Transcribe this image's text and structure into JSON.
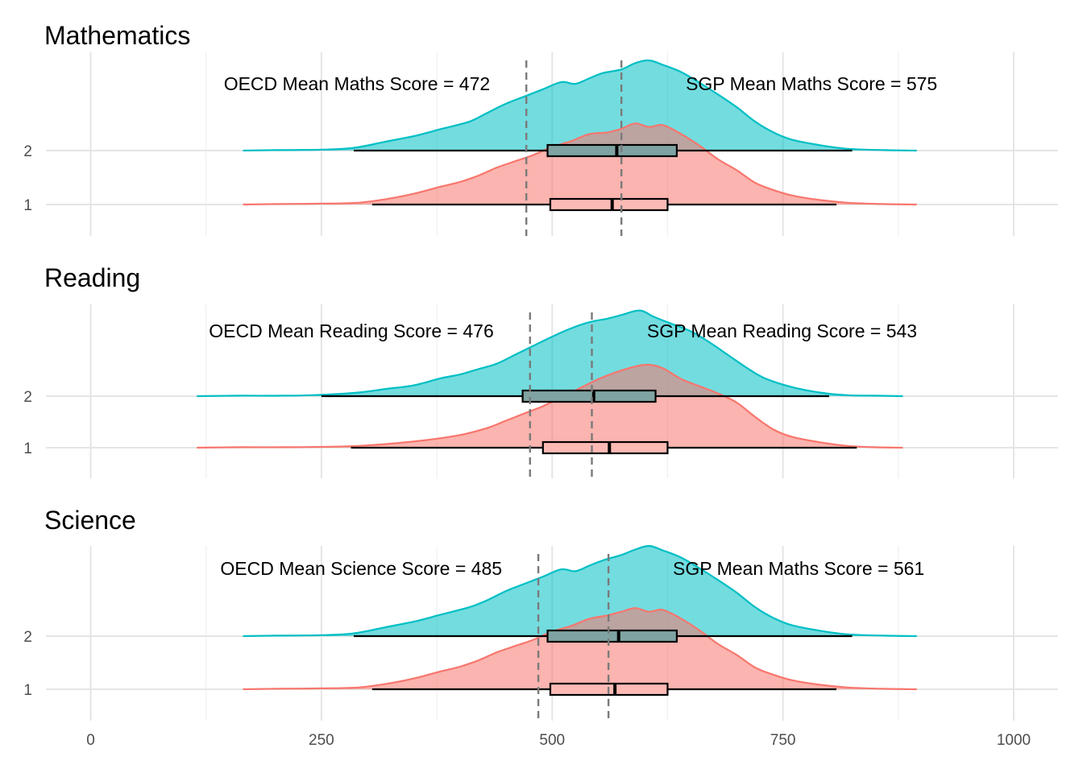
{
  "chart_data": {
    "type": "area",
    "subtype": "raincloud/ridgeline density with boxplots, faceted",
    "x_axis": {
      "ticks": [
        0,
        250,
        500,
        750,
        1000
      ],
      "labels": [
        "0",
        "250",
        "500",
        "750",
        "1000"
      ],
      "xlim": [
        -40,
        1050
      ]
    },
    "y_categories": [
      "2",
      "1"
    ],
    "colors": {
      "group_1": "#F8766D",
      "group_2": "#00BFC4",
      "box_fill_1": "#FDBAB5",
      "box_fill_2": "#7FA3A2",
      "mean_line": "#7a7a7a"
    },
    "facets": [
      {
        "title": "Mathematics",
        "oecd_mean": 472,
        "sgp_mean": 575,
        "oecd_label": "OECD Mean Maths Score = 472",
        "sgp_label": "SGP Mean Maths Score = 575",
        "series": [
          {
            "group": "2",
            "range": [
              165,
              895
            ],
            "whisker": [
              285,
              825
            ],
            "box": [
              495,
              570,
              635
            ],
            "density": [
              [
                165,
                0
              ],
              [
                200,
                0.005
              ],
              [
                250,
                0.01
              ],
              [
                285,
                0.03
              ],
              [
                320,
                0.1
              ],
              [
                350,
                0.16
              ],
              [
                380,
                0.24
              ],
              [
                410,
                0.32
              ],
              [
                430,
                0.42
              ],
              [
                450,
                0.52
              ],
              [
                470,
                0.6
              ],
              [
                490,
                0.68
              ],
              [
                510,
                0.76
              ],
              [
                525,
                0.74
              ],
              [
                540,
                0.8
              ],
              [
                555,
                0.86
              ],
              [
                575,
                0.9
              ],
              [
                590,
                0.97
              ],
              [
                605,
                1.0
              ],
              [
                620,
                0.95
              ],
              [
                640,
                0.87
              ],
              [
                660,
                0.75
              ],
              [
                680,
                0.62
              ],
              [
                700,
                0.48
              ],
              [
                720,
                0.32
              ],
              [
                740,
                0.2
              ],
              [
                760,
                0.12
              ],
              [
                790,
                0.06
              ],
              [
                820,
                0.02
              ],
              [
                860,
                0.005
              ],
              [
                895,
                0
              ]
            ]
          },
          {
            "group": "1",
            "range": [
              165,
              895
            ],
            "whisker": [
              305,
              808
            ],
            "box": [
              498,
              565,
              625
            ],
            "density": [
              [
                165,
                0
              ],
              [
                200,
                0.005
              ],
              [
                250,
                0.01
              ],
              [
                290,
                0.02
              ],
              [
                320,
                0.06
              ],
              [
                350,
                0.12
              ],
              [
                380,
                0.2
              ],
              [
                400,
                0.25
              ],
              [
                420,
                0.32
              ],
              [
                440,
                0.41
              ],
              [
                460,
                0.48
              ],
              [
                480,
                0.55
              ],
              [
                500,
                0.64
              ],
              [
                520,
                0.7
              ],
              [
                540,
                0.78
              ],
              [
                560,
                0.8
              ],
              [
                575,
                0.84
              ],
              [
                590,
                0.9
              ],
              [
                605,
                0.86
              ],
              [
                620,
                0.88
              ],
              [
                640,
                0.78
              ],
              [
                660,
                0.65
              ],
              [
                680,
                0.5
              ],
              [
                700,
                0.38
              ],
              [
                720,
                0.24
              ],
              [
                740,
                0.16
              ],
              [
                760,
                0.1
              ],
              [
                790,
                0.05
              ],
              [
                820,
                0.02
              ],
              [
                860,
                0.005
              ],
              [
                895,
                0
              ]
            ]
          }
        ]
      },
      {
        "title": "Reading",
        "oecd_mean": 476,
        "sgp_mean": 543,
        "oecd_label": "OECD Mean Reading Score = 476",
        "sgp_label": "SGP Mean Reading Score = 543",
        "series": [
          {
            "group": "2",
            "range": [
              115,
              880
            ],
            "whisker": [
              250,
              800
            ],
            "box": [
              468,
              545,
              612
            ],
            "density": [
              [
                115,
                0
              ],
              [
                160,
                0.005
              ],
              [
                210,
                0.005
              ],
              [
                250,
                0.015
              ],
              [
                290,
                0.04
              ],
              [
                320,
                0.08
              ],
              [
                350,
                0.12
              ],
              [
                380,
                0.2
              ],
              [
                400,
                0.24
              ],
              [
                420,
                0.3
              ],
              [
                440,
                0.36
              ],
              [
                460,
                0.46
              ],
              [
                480,
                0.56
              ],
              [
                500,
                0.66
              ],
              [
                520,
                0.75
              ],
              [
                540,
                0.82
              ],
              [
                560,
                0.86
              ],
              [
                575,
                0.9
              ],
              [
                595,
                0.95
              ],
              [
                610,
                0.88
              ],
              [
                630,
                0.8
              ],
              [
                650,
                0.72
              ],
              [
                670,
                0.6
              ],
              [
                690,
                0.46
              ],
              [
                710,
                0.32
              ],
              [
                730,
                0.2
              ],
              [
                760,
                0.1
              ],
              [
                790,
                0.04
              ],
              [
                820,
                0.01
              ],
              [
                850,
                0.005
              ],
              [
                880,
                0
              ]
            ]
          },
          {
            "group": "1",
            "range": [
              115,
              880
            ],
            "whisker": [
              282,
              830
            ],
            "box": [
              490,
              562,
              625
            ],
            "density": [
              [
                115,
                0
              ],
              [
                160,
                0.005
              ],
              [
                210,
                0.005
              ],
              [
                260,
                0.01
              ],
              [
                290,
                0.02
              ],
              [
                320,
                0.04
              ],
              [
                360,
                0.08
              ],
              [
                400,
                0.14
              ],
              [
                430,
                0.22
              ],
              [
                450,
                0.3
              ],
              [
                470,
                0.38
              ],
              [
                490,
                0.46
              ],
              [
                510,
                0.56
              ],
              [
                530,
                0.66
              ],
              [
                550,
                0.76
              ],
              [
                570,
                0.84
              ],
              [
                590,
                0.9
              ],
              [
                605,
                0.92
              ],
              [
                620,
                0.88
              ],
              [
                640,
                0.76
              ],
              [
                660,
                0.68
              ],
              [
                680,
                0.6
              ],
              [
                700,
                0.5
              ],
              [
                720,
                0.34
              ],
              [
                740,
                0.2
              ],
              [
                760,
                0.12
              ],
              [
                790,
                0.06
              ],
              [
                820,
                0.02
              ],
              [
                850,
                0.005
              ],
              [
                880,
                0
              ]
            ]
          }
        ]
      },
      {
        "title": "Science",
        "oecd_mean": 485,
        "sgp_mean": 561,
        "oecd_label": "OECD Mean Science Score = 485",
        "sgp_label": "SGP Mean Maths Score = 561",
        "series": [
          {
            "group": "2",
            "range": [
              165,
              895
            ],
            "whisker": [
              285,
              825
            ],
            "box": [
              495,
              572,
              635
            ],
            "density": [
              [
                165,
                0
              ],
              [
                200,
                0.005
              ],
              [
                250,
                0.01
              ],
              [
                285,
                0.03
              ],
              [
                320,
                0.1
              ],
              [
                350,
                0.16
              ],
              [
                380,
                0.24
              ],
              [
                410,
                0.32
              ],
              [
                430,
                0.4
              ],
              [
                450,
                0.5
              ],
              [
                470,
                0.58
              ],
              [
                490,
                0.66
              ],
              [
                510,
                0.74
              ],
              [
                525,
                0.72
              ],
              [
                540,
                0.78
              ],
              [
                555,
                0.84
              ],
              [
                575,
                0.9
              ],
              [
                590,
                0.96
              ],
              [
                605,
                1.0
              ],
              [
                620,
                0.95
              ],
              [
                640,
                0.87
              ],
              [
                660,
                0.75
              ],
              [
                680,
                0.62
              ],
              [
                700,
                0.48
              ],
              [
                720,
                0.32
              ],
              [
                740,
                0.2
              ],
              [
                760,
                0.12
              ],
              [
                790,
                0.06
              ],
              [
                820,
                0.02
              ],
              [
                860,
                0.005
              ],
              [
                895,
                0
              ]
            ]
          },
          {
            "group": "1",
            "range": [
              165,
              895
            ],
            "whisker": [
              305,
              808
            ],
            "box": [
              498,
              568,
              625
            ],
            "density": [
              [
                165,
                0
              ],
              [
                200,
                0.005
              ],
              [
                250,
                0.01
              ],
              [
                290,
                0.02
              ],
              [
                320,
                0.06
              ],
              [
                350,
                0.12
              ],
              [
                380,
                0.2
              ],
              [
                400,
                0.25
              ],
              [
                420,
                0.32
              ],
              [
                440,
                0.41
              ],
              [
                460,
                0.48
              ],
              [
                480,
                0.55
              ],
              [
                500,
                0.64
              ],
              [
                520,
                0.7
              ],
              [
                540,
                0.78
              ],
              [
                560,
                0.82
              ],
              [
                575,
                0.86
              ],
              [
                590,
                0.9
              ],
              [
                605,
                0.86
              ],
              [
                620,
                0.88
              ],
              [
                640,
                0.78
              ],
              [
                660,
                0.65
              ],
              [
                680,
                0.5
              ],
              [
                700,
                0.38
              ],
              [
                720,
                0.24
              ],
              [
                740,
                0.16
              ],
              [
                760,
                0.1
              ],
              [
                790,
                0.05
              ],
              [
                820,
                0.02
              ],
              [
                860,
                0.005
              ],
              [
                895,
                0
              ]
            ]
          }
        ]
      }
    ]
  }
}
